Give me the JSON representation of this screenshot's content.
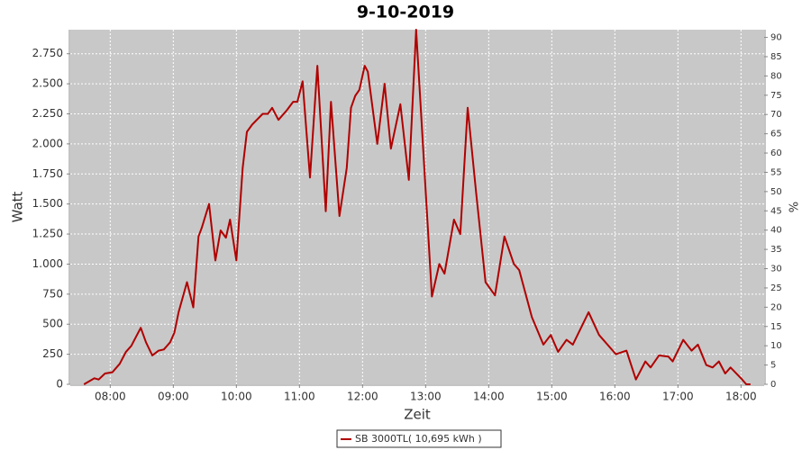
{
  "chart_data": {
    "type": "line",
    "title": "9-10-2019",
    "x_label": "Zeit",
    "y_label": "Watt",
    "y2_label": "%",
    "x": [
      "07:35",
      "07:45",
      "07:49",
      "07:55",
      "08:02",
      "08:09",
      "08:15",
      "08:20",
      "08:29",
      "08:34",
      "08:40",
      "08:46",
      "08:51",
      "08:57",
      "09:01",
      "09:05",
      "09:13",
      "09:19",
      "09:24",
      "09:27",
      "09:34",
      "09:40",
      "09:45",
      "09:50",
      "09:54",
      "10:00",
      "10:06",
      "10:10",
      "10:15",
      "10:25",
      "10:30",
      "10:34",
      "10:40",
      "10:48",
      "10:54",
      "10:58",
      "11:03",
      "11:10",
      "11:17",
      "11:25",
      "11:30",
      "11:38",
      "11:45",
      "11:49",
      "11:53",
      "11:57",
      "12:02",
      "12:05",
      "12:14",
      "12:21",
      "12:27",
      "12:36",
      "12:44",
      "12:51",
      "13:06",
      "13:13",
      "13:18",
      "13:27",
      "13:33",
      "13:40",
      "13:48",
      "13:57",
      "14:06",
      "14:15",
      "14:24",
      "14:29",
      "14:41",
      "14:52",
      "14:59",
      "15:06",
      "15:14",
      "15:20",
      "15:35",
      "15:45",
      "16:01",
      "16:11",
      "16:20",
      "16:29",
      "16:34",
      "16:42",
      "16:51",
      "16:55",
      "17:05",
      "17:13",
      "17:19",
      "17:27",
      "17:33",
      "17:39",
      "17:45",
      "17:50",
      "18:00",
      "18:05",
      "18:09"
    ],
    "series": [
      {
        "name": "SB 3000TL( 10,695 kWh )",
        "color": "#b00000",
        "values": [
          0,
          50,
          40,
          90,
          100,
          170,
          270,
          320,
          470,
          350,
          240,
          280,
          290,
          350,
          430,
          600,
          850,
          640,
          1230,
          1300,
          1500,
          1030,
          1280,
          1220,
          1370,
          1030,
          1800,
          2100,
          2160,
          2250,
          2250,
          2300,
          2200,
          2280,
          2350,
          2350,
          2520,
          1720,
          2650,
          1440,
          2350,
          1400,
          1800,
          2300,
          2400,
          2450,
          2650,
          2600,
          2000,
          2500,
          1960,
          2330,
          1700,
          2950,
          730,
          1000,
          920,
          1370,
          1250,
          2300,
          1600,
          850,
          740,
          1230,
          1000,
          950,
          560,
          330,
          410,
          270,
          370,
          330,
          600,
          410,
          250,
          280,
          40,
          190,
          140,
          240,
          230,
          190,
          370,
          280,
          330,
          160,
          140,
          190,
          90,
          140,
          50,
          0,
          0
        ]
      }
    ],
    "xlim": [
      "07:22",
      "18:22"
    ],
    "xticks": [
      "08:00",
      "09:00",
      "10:00",
      "11:00",
      "12:00",
      "13:00",
      "14:00",
      "15:00",
      "16:00",
      "17:00",
      "18:00"
    ],
    "ylim": [
      0,
      2950
    ],
    "yticks": [
      0,
      250,
      500,
      750,
      {
        "value": 1000,
        "label": "1.000"
      },
      {
        "value": 1250,
        "label": "1.250"
      },
      {
        "value": 1500,
        "label": "1.500"
      },
      {
        "value": 1750,
        "label": "1.750"
      },
      {
        "value": 2000,
        "label": "2.000"
      },
      {
        "value": 2250,
        "label": "2.250"
      },
      {
        "value": 2500,
        "label": "2.500"
      },
      {
        "value": 2750,
        "label": "2.750"
      }
    ],
    "y2lim": [
      0,
      92
    ],
    "y2ticks": [
      0,
      5,
      10,
      15,
      20,
      25,
      30,
      35,
      40,
      45,
      50,
      55,
      60,
      65,
      70,
      75,
      80,
      85,
      90
    ],
    "grid": true,
    "legend": "bottom"
  }
}
